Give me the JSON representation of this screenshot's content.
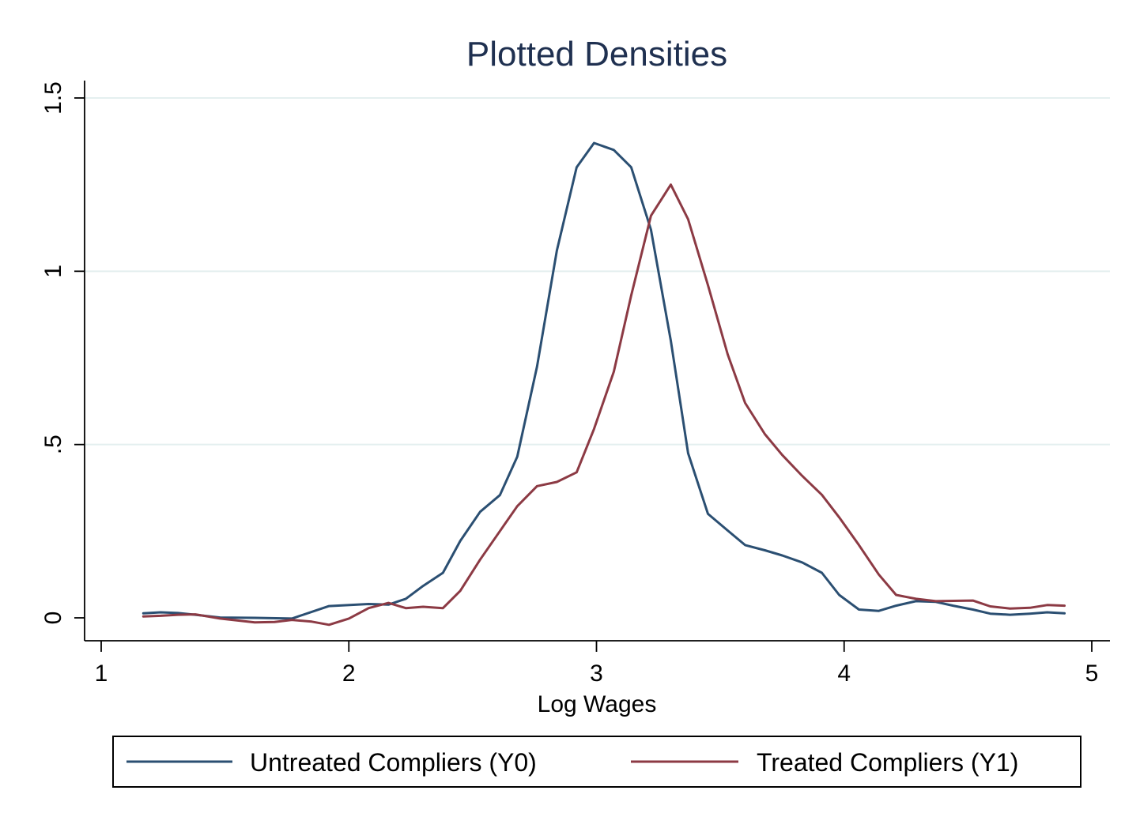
{
  "chart_data": {
    "type": "line",
    "title": "Plotted Densities",
    "xlabel": "Log Wages",
    "ylabel": "",
    "xlim": [
      1,
      5
    ],
    "ylim": [
      0,
      1.5
    ],
    "x_ticks": [
      "1",
      "2",
      "3",
      "4",
      "5"
    ],
    "x_tick_values": [
      1,
      2,
      3,
      4,
      5
    ],
    "y_ticks": [
      "0",
      ".5",
      "1",
      "1.5"
    ],
    "y_tick_values": [
      0,
      0.5,
      1,
      1.5
    ],
    "grid": "horizontal",
    "legend_position": "bottom",
    "series": [
      {
        "name": "Untreated Compliers (Y0)",
        "color": "#2b4f72",
        "x": [
          1.17,
          1.24,
          1.31,
          1.38,
          1.48,
          1.62,
          1.77,
          1.92,
          2.08,
          2.16,
          2.23,
          2.3,
          2.38,
          2.45,
          2.53,
          2.61,
          2.68,
          2.76,
          2.84,
          2.92,
          2.99,
          3.07,
          3.14,
          3.22,
          3.3,
          3.37,
          3.45,
          3.53,
          3.6,
          3.68,
          3.75,
          3.83,
          3.91,
          3.98,
          4.06,
          4.14,
          4.21,
          4.29,
          4.37,
          4.44,
          4.52,
          4.59,
          4.67,
          4.75,
          4.82,
          4.89
        ],
        "y": [
          0.013,
          0.016,
          0.014,
          0.009,
          0.001,
          0.0,
          -0.002,
          0.034,
          0.04,
          0.038,
          0.055,
          0.092,
          0.13,
          0.222,
          0.306,
          0.354,
          0.465,
          0.725,
          1.06,
          1.3,
          1.37,
          1.35,
          1.3,
          1.12,
          0.8,
          0.475,
          0.3,
          0.252,
          0.21,
          0.195,
          0.18,
          0.16,
          0.13,
          0.066,
          0.024,
          0.02,
          0.035,
          0.048,
          0.046,
          0.035,
          0.024,
          0.012,
          0.009,
          0.012,
          0.016,
          0.013
        ]
      },
      {
        "name": "Treated Compliers (Y1)",
        "color": "#8c3a44",
        "x": [
          1.17,
          1.24,
          1.31,
          1.38,
          1.48,
          1.62,
          1.7,
          1.77,
          1.85,
          1.92,
          2.0,
          2.08,
          2.16,
          2.23,
          2.3,
          2.38,
          2.45,
          2.53,
          2.61,
          2.68,
          2.76,
          2.84,
          2.92,
          2.99,
          3.07,
          3.14,
          3.22,
          3.3,
          3.37,
          3.45,
          3.53,
          3.6,
          3.68,
          3.75,
          3.83,
          3.91,
          3.98,
          4.06,
          4.14,
          4.21,
          4.29,
          4.37,
          4.44,
          4.52,
          4.59,
          4.67,
          4.75,
          4.82,
          4.89
        ],
        "y": [
          0.004,
          0.006,
          0.009,
          0.01,
          -0.002,
          -0.013,
          -0.012,
          -0.006,
          -0.011,
          -0.02,
          -0.002,
          0.028,
          0.043,
          0.028,
          0.032,
          0.028,
          0.078,
          0.168,
          0.25,
          0.322,
          0.38,
          0.392,
          0.42,
          0.545,
          0.71,
          0.93,
          1.16,
          1.25,
          1.15,
          0.96,
          0.76,
          0.62,
          0.53,
          0.47,
          0.41,
          0.355,
          0.29,
          0.21,
          0.125,
          0.066,
          0.055,
          0.048,
          0.049,
          0.05,
          0.033,
          0.027,
          0.029,
          0.037,
          0.035
        ]
      }
    ]
  }
}
